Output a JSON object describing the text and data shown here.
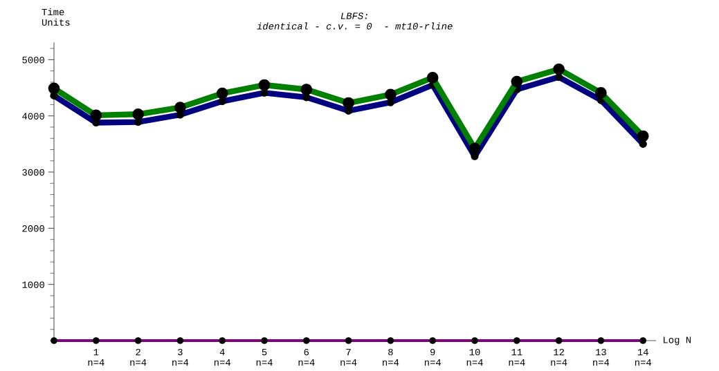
{
  "chart_data": {
    "type": "line",
    "title": "LBFS:\nidentical - c.v. = 0  - mt10-rline",
    "xlabel": "Log N",
    "ylabel": "Time\nUnits",
    "categories": [
      null,
      "1\nn=4",
      "2\nn=4",
      "3\nn=4",
      "4\nn=4",
      "5\nn=4",
      "6\nn=4",
      "7\nn=4",
      "8\nn=4",
      "9\nn=4",
      "10\nn=4",
      "11\nn=4",
      "12\nn=4",
      "13\nn=4",
      "14\nn=4"
    ],
    "ylim": [
      0,
      5300
    ],
    "yticks": [
      1000,
      2000,
      3000,
      4000,
      5000
    ],
    "grid": false,
    "legend": false,
    "marker": "circle",
    "line_style": "solid",
    "series": [
      {
        "color": "#008000",
        "values": [
          4490,
          4010,
          4030,
          4150,
          4400,
          4550,
          4470,
          4230,
          4380,
          4680,
          3420,
          4610,
          4830,
          4410,
          3640
        ]
      },
      {
        "color": "#000080",
        "values": [
          4360,
          3880,
          3890,
          4020,
          4260,
          4410,
          4330,
          4090,
          4240,
          4550,
          3280,
          4470,
          4690,
          4280,
          3500
        ]
      },
      {
        "color": "#800080",
        "values": [
          0,
          0,
          0,
          0,
          0,
          0,
          0,
          0,
          0,
          0,
          0,
          0,
          0,
          0,
          0
        ]
      }
    ]
  }
}
